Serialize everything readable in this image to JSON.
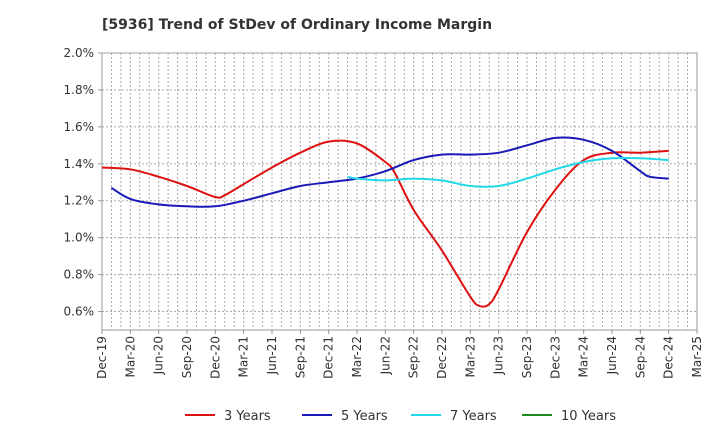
{
  "chart_data": {
    "type": "line",
    "title": "[5936]  Trend of StDev of Ordinary Income Margin",
    "xlabel": "",
    "ylabel": "",
    "ylim": [
      0.5,
      2.0
    ],
    "yticks": [
      0.6,
      0.8,
      1.0,
      1.2,
      1.4,
      1.6,
      1.8,
      2.0
    ],
    "ytick_labels": [
      "0.6%",
      "0.8%",
      "1.0%",
      "1.2%",
      "1.4%",
      "1.6%",
      "1.8%",
      "2.0%"
    ],
    "xticks": [
      "2019-12",
      "2020-03",
      "2020-06",
      "2020-09",
      "2020-12",
      "2021-03",
      "2021-06",
      "2021-09",
      "2021-12",
      "2022-03",
      "2022-06",
      "2022-09",
      "2022-12",
      "2023-03",
      "2023-06",
      "2023-09",
      "2023-12",
      "2024-03",
      "2024-06",
      "2024-09",
      "2024-12",
      "2025-03"
    ],
    "xtick_labels": [
      "Dec-19",
      "Mar-20",
      "Jun-20",
      "Sep-20",
      "Dec-20",
      "Mar-21",
      "Jun-21",
      "Sep-21",
      "Dec-21",
      "Mar-22",
      "Jun-22",
      "Sep-22",
      "Dec-22",
      "Mar-23",
      "Jun-23",
      "Sep-23",
      "Dec-23",
      "Mar-24",
      "Jun-24",
      "Sep-24",
      "Dec-24",
      "Mar-25"
    ],
    "grid": true,
    "legend_position": "bottom",
    "series": [
      {
        "name": "3 Years",
        "color": "#dd1111",
        "points": [
          [
            "2019-12",
            1.38
          ],
          [
            "2020-03",
            1.37
          ],
          [
            "2020-06",
            1.33
          ],
          [
            "2020-09",
            1.28
          ],
          [
            "2020-12",
            1.22
          ],
          [
            "2021-01",
            1.23
          ],
          [
            "2021-03",
            1.29
          ],
          [
            "2021-06",
            1.38
          ],
          [
            "2021-09",
            1.46
          ],
          [
            "2021-12",
            1.52
          ],
          [
            "2022-03",
            1.51
          ],
          [
            "2022-06",
            1.41
          ],
          [
            "2022-07",
            1.35
          ],
          [
            "2022-09",
            1.15
          ],
          [
            "2022-12",
            0.93
          ],
          [
            "2023-03",
            0.68
          ],
          [
            "2023-04",
            0.63
          ],
          [
            "2023-05",
            0.64
          ],
          [
            "2023-06",
            0.72
          ],
          [
            "2023-09",
            1.03
          ],
          [
            "2023-12",
            1.26
          ],
          [
            "2024-03",
            1.42
          ],
          [
            "2024-06",
            1.46
          ],
          [
            "2024-09",
            1.46
          ],
          [
            "2024-12",
            1.47
          ]
        ]
      },
      {
        "name": "5 Years",
        "color": "#1a1ab8",
        "points": [
          [
            "2020-01",
            1.27
          ],
          [
            "2020-03",
            1.21
          ],
          [
            "2020-06",
            1.18
          ],
          [
            "2020-09",
            1.17
          ],
          [
            "2020-12",
            1.17
          ],
          [
            "2021-03",
            1.2
          ],
          [
            "2021-06",
            1.24
          ],
          [
            "2021-09",
            1.28
          ],
          [
            "2021-12",
            1.3
          ],
          [
            "2022-03",
            1.32
          ],
          [
            "2022-06",
            1.36
          ],
          [
            "2022-09",
            1.42
          ],
          [
            "2022-12",
            1.45
          ],
          [
            "2023-03",
            1.45
          ],
          [
            "2023-06",
            1.46
          ],
          [
            "2023-09",
            1.5
          ],
          [
            "2023-12",
            1.54
          ],
          [
            "2024-03",
            1.53
          ],
          [
            "2024-06",
            1.47
          ],
          [
            "2024-09",
            1.36
          ],
          [
            "2024-10",
            1.33
          ],
          [
            "2024-12",
            1.32
          ]
        ]
      },
      {
        "name": "7 Years",
        "color": "#22d8e8",
        "points": [
          [
            "2022-02",
            1.33
          ],
          [
            "2022-03",
            1.32
          ],
          [
            "2022-06",
            1.31
          ],
          [
            "2022-09",
            1.32
          ],
          [
            "2022-12",
            1.31
          ],
          [
            "2023-03",
            1.28
          ],
          [
            "2023-06",
            1.28
          ],
          [
            "2023-09",
            1.32
          ],
          [
            "2023-12",
            1.37
          ],
          [
            "2024-03",
            1.41
          ],
          [
            "2024-06",
            1.43
          ],
          [
            "2024-09",
            1.43
          ],
          [
            "2024-12",
            1.42
          ]
        ]
      },
      {
        "name": "10 Years",
        "color": "#1f8a1f",
        "points": []
      }
    ]
  }
}
